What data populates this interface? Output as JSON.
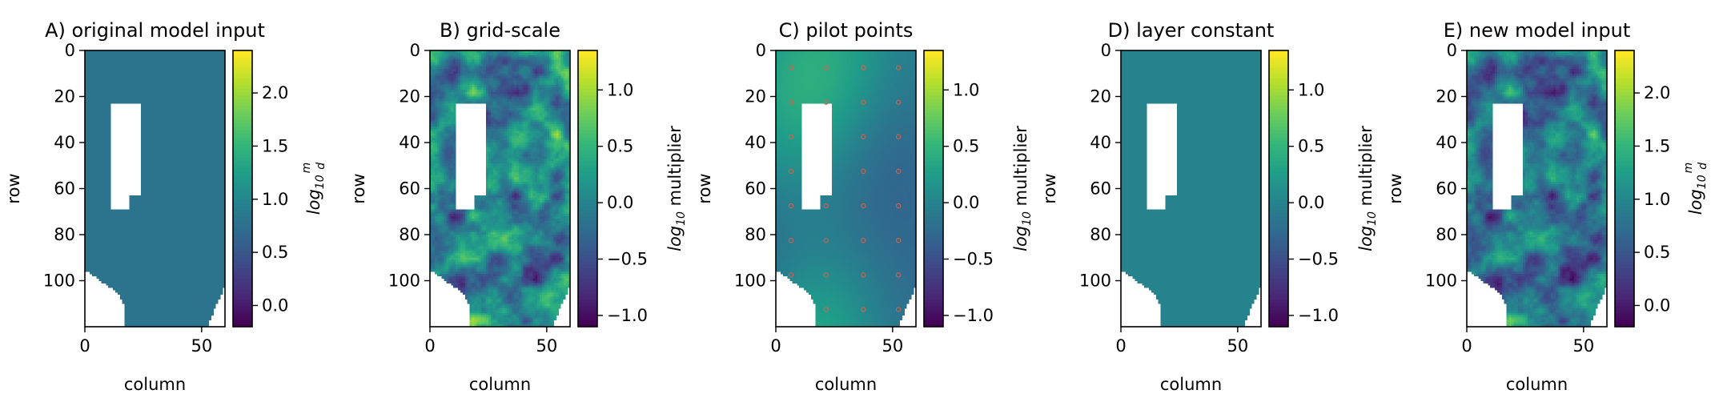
{
  "chart_data": [
    {
      "type": "heatmap",
      "title": "A) original model input",
      "fill": "uniform",
      "value": 0.8,
      "xlabel": "column",
      "ylabel": "row",
      "xticks": [
        "0",
        "50"
      ],
      "yticks": [
        "0",
        "20",
        "40",
        "60",
        "80",
        "100"
      ],
      "xlim": [
        0,
        60
      ],
      "ylim": [
        120,
        0
      ],
      "colorbar": {
        "label": "log10 m/d",
        "label_main": "log",
        "label_sub": "10",
        "label_num": "m",
        "label_den": "d",
        "vmin": -0.2,
        "vmax": 2.4,
        "ticks": [
          "0.0",
          "0.5",
          "1.0",
          "1.5",
          "2.0"
        ]
      },
      "colormap": "viridis",
      "grid": false
    },
    {
      "type": "heatmap",
      "title": "B) grid-scale",
      "fill": "random-field",
      "value": 0.0,
      "xlabel": "column",
      "ylabel": "row",
      "xticks": [
        "0",
        "50"
      ],
      "yticks": [
        "0",
        "20",
        "40",
        "60",
        "80",
        "100"
      ],
      "xlim": [
        0,
        60
      ],
      "ylim": [
        120,
        0
      ],
      "colorbar": {
        "label": "log10 multiplier",
        "label_main": "log",
        "label_sub": "10",
        "label_rest": " multiplier",
        "vmin": -1.1,
        "vmax": 1.35,
        "ticks": [
          "−1.0",
          "−0.5",
          "0.0",
          "0.5",
          "1.0"
        ]
      },
      "colormap": "viridis",
      "grid": false
    },
    {
      "type": "heatmap",
      "title": "C) pilot points",
      "fill": "smooth-field",
      "value": 0.0,
      "xlabel": "column",
      "ylabel": "row",
      "xticks": [
        "0",
        "50"
      ],
      "yticks": [
        "0",
        "20",
        "40",
        "60",
        "80",
        "100"
      ],
      "xlim": [
        0,
        60
      ],
      "ylim": [
        120,
        0
      ],
      "pilot_points": {
        "columns": [
          6,
          21,
          37,
          52
        ],
        "rows": [
          7,
          22,
          37,
          52,
          67,
          82,
          97,
          112
        ],
        "marker_color": "#d9604a"
      },
      "colorbar": {
        "label": "log10 multiplier",
        "label_main": "log",
        "label_sub": "10",
        "label_rest": " multiplier",
        "vmin": -1.1,
        "vmax": 1.35,
        "ticks": [
          "−1.0",
          "−0.5",
          "0.0",
          "0.5",
          "1.0"
        ]
      },
      "colormap": "viridis",
      "grid": false
    },
    {
      "type": "heatmap",
      "title": "D) layer constant",
      "fill": "uniform",
      "value": 0.0,
      "xlabel": "column",
      "ylabel": "row",
      "xticks": [
        "0",
        "50"
      ],
      "yticks": [
        "0",
        "20",
        "40",
        "60",
        "80",
        "100"
      ],
      "xlim": [
        0,
        60
      ],
      "ylim": [
        120,
        0
      ],
      "colorbar": {
        "label": "log10 multiplier",
        "label_main": "log",
        "label_sub": "10",
        "label_rest": " multiplier",
        "vmin": -1.1,
        "vmax": 1.35,
        "ticks": [
          "−1.0",
          "−0.5",
          "0.0",
          "0.5",
          "1.0"
        ]
      },
      "colormap": "viridis",
      "grid": false
    },
    {
      "type": "heatmap",
      "title": "E) new model input",
      "fill": "random-field",
      "value": 0.8,
      "xlabel": "column",
      "ylabel": "row",
      "xticks": [
        "0",
        "50"
      ],
      "yticks": [
        "0",
        "20",
        "40",
        "60",
        "80",
        "100"
      ],
      "xlim": [
        0,
        60
      ],
      "ylim": [
        120,
        0
      ],
      "colorbar": {
        "label": "log10 m/d",
        "label_main": "log",
        "label_sub": "10",
        "label_num": "m",
        "label_den": "d",
        "vmin": -0.2,
        "vmax": 2.4,
        "ticks": [
          "0.0",
          "0.5",
          "1.0",
          "1.5",
          "2.0"
        ]
      },
      "colormap": "viridis",
      "grid": false
    }
  ]
}
